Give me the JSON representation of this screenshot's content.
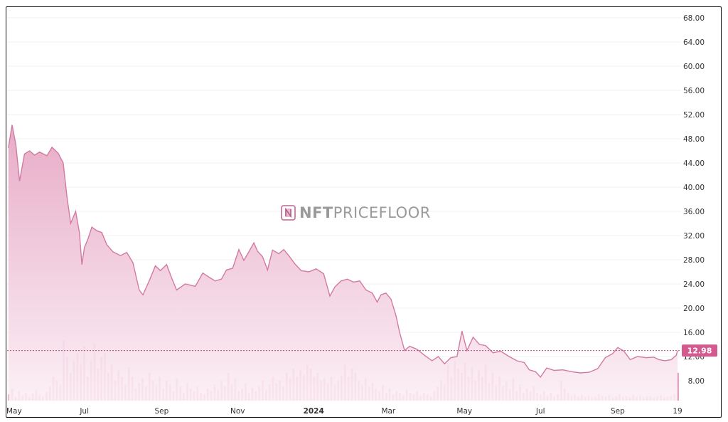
{
  "watermark": {
    "brand_bold": "NFT",
    "brand_light": "PRICEFLOOR",
    "icon": "nft-logo-icon"
  },
  "colors": {
    "line": "#d27aa2",
    "fill_top": "#e6a7c4",
    "fill_bottom": "#fbeef4",
    "volume": "#e37fae",
    "price_label_bg": "#d3598f"
  },
  "current_price": {
    "value": 12.98,
    "label": "12.98"
  },
  "chart_data": {
    "type": "area",
    "title": "",
    "xlabel": "",
    "ylabel": "",
    "ylim": [
      5,
      70
    ],
    "y_ticks": [
      8,
      12,
      16,
      20,
      24,
      28,
      32,
      36,
      40,
      44,
      48,
      52,
      56,
      60,
      64,
      68
    ],
    "y_tick_labels": [
      "8.00",
      "12.00",
      "16.00",
      "20.00",
      "24.00",
      "28.00",
      "32.00",
      "36.00",
      "40.00",
      "44.00",
      "48.00",
      "52.00",
      "56.00",
      "60.00",
      "64.00",
      "68.00"
    ],
    "x_ticks": [
      {
        "label": "May",
        "date": "2023-05-01"
      },
      {
        "label": "Jul",
        "date": "2023-07-01"
      },
      {
        "label": "Sep",
        "date": "2023-09-01"
      },
      {
        "label": "Nov",
        "date": "2023-11-01"
      },
      {
        "label": "2024",
        "date": "2024-01-01",
        "bold": true
      },
      {
        "label": "Mar",
        "date": "2024-03-01"
      },
      {
        "label": "May",
        "date": "2024-05-01"
      },
      {
        "label": "Jul",
        "date": "2024-07-01"
      },
      {
        "label": "Sep",
        "date": "2024-09-01"
      },
      {
        "label": "19",
        "date": "2024-10-19"
      }
    ],
    "grid": true,
    "price_series": {
      "name": "",
      "points": [
        [
          "2023-05-01",
          46.5
        ],
        [
          "2023-05-04",
          50.3
        ],
        [
          "2023-05-07",
          47.0
        ],
        [
          "2023-05-10",
          41.0
        ],
        [
          "2023-05-14",
          45.5
        ],
        [
          "2023-05-18",
          46.0
        ],
        [
          "2023-05-22",
          45.3
        ],
        [
          "2023-05-26",
          45.8
        ],
        [
          "2023-06-01",
          45.2
        ],
        [
          "2023-06-05",
          46.6
        ],
        [
          "2023-06-10",
          45.6
        ],
        [
          "2023-06-14",
          44.0
        ],
        [
          "2023-06-17",
          38.5
        ],
        [
          "2023-06-20",
          34.0
        ],
        [
          "2023-06-24",
          36.0
        ],
        [
          "2023-06-27",
          32.5
        ],
        [
          "2023-06-29",
          27.2
        ],
        [
          "2023-07-01",
          30.0
        ],
        [
          "2023-07-04",
          31.5
        ],
        [
          "2023-07-07",
          33.4
        ],
        [
          "2023-07-11",
          32.8
        ],
        [
          "2023-07-15",
          32.5
        ],
        [
          "2023-07-19",
          30.5
        ],
        [
          "2023-07-24",
          29.3
        ],
        [
          "2023-07-30",
          28.7
        ],
        [
          "2023-08-04",
          29.2
        ],
        [
          "2023-08-09",
          27.5
        ],
        [
          "2023-08-14",
          23.0
        ],
        [
          "2023-08-17",
          22.2
        ],
        [
          "2023-08-22",
          24.5
        ],
        [
          "2023-08-27",
          27.0
        ],
        [
          "2023-08-31",
          26.2
        ],
        [
          "2023-09-05",
          27.2
        ],
        [
          "2023-09-09",
          25.0
        ],
        [
          "2023-09-13",
          23.0
        ],
        [
          "2023-09-20",
          24.0
        ],
        [
          "2023-09-28",
          23.6
        ],
        [
          "2023-10-04",
          25.8
        ],
        [
          "2023-10-10",
          25.0
        ],
        [
          "2023-10-14",
          24.5
        ],
        [
          "2023-10-19",
          24.8
        ],
        [
          "2023-10-23",
          26.3
        ],
        [
          "2023-10-28",
          26.6
        ],
        [
          "2023-11-02",
          29.7
        ],
        [
          "2023-11-06",
          27.9
        ],
        [
          "2023-11-10",
          29.3
        ],
        [
          "2023-11-14",
          30.8
        ],
        [
          "2023-11-17",
          29.4
        ],
        [
          "2023-11-21",
          28.5
        ],
        [
          "2023-11-25",
          26.3
        ],
        [
          "2023-11-29",
          29.6
        ],
        [
          "2023-12-04",
          29.0
        ],
        [
          "2023-12-08",
          29.7
        ],
        [
          "2023-12-12",
          28.7
        ],
        [
          "2023-12-17",
          27.3
        ],
        [
          "2023-12-22",
          26.2
        ],
        [
          "2023-12-28",
          26.0
        ],
        [
          "2024-01-03",
          26.5
        ],
        [
          "2024-01-09",
          25.7
        ],
        [
          "2024-01-14",
          22.0
        ],
        [
          "2024-01-18",
          23.5
        ],
        [
          "2024-01-23",
          24.5
        ],
        [
          "2024-01-28",
          24.8
        ],
        [
          "2024-02-02",
          24.3
        ],
        [
          "2024-02-07",
          24.5
        ],
        [
          "2024-02-12",
          23.0
        ],
        [
          "2024-02-17",
          22.5
        ],
        [
          "2024-02-21",
          21.0
        ],
        [
          "2024-02-24",
          22.2
        ],
        [
          "2024-02-28",
          22.5
        ],
        [
          "2024-03-03",
          21.5
        ],
        [
          "2024-03-07",
          18.8
        ],
        [
          "2024-03-10",
          16.0
        ],
        [
          "2024-03-14",
          13.0
        ],
        [
          "2024-03-18",
          13.7
        ],
        [
          "2024-03-24",
          13.2
        ],
        [
          "2024-03-30",
          12.2
        ],
        [
          "2024-04-05",
          11.3
        ],
        [
          "2024-04-10",
          12.0
        ],
        [
          "2024-04-15",
          10.8
        ],
        [
          "2024-04-20",
          11.8
        ],
        [
          "2024-04-25",
          12.0
        ],
        [
          "2024-04-29",
          16.2
        ],
        [
          "2024-05-03",
          13.0
        ],
        [
          "2024-05-08",
          15.2
        ],
        [
          "2024-05-13",
          14.0
        ],
        [
          "2024-05-18",
          13.8
        ],
        [
          "2024-05-24",
          12.6
        ],
        [
          "2024-05-30",
          12.9
        ],
        [
          "2024-06-05",
          12.1
        ],
        [
          "2024-06-12",
          11.3
        ],
        [
          "2024-06-18",
          11.0
        ],
        [
          "2024-06-22",
          9.8
        ],
        [
          "2024-06-27",
          9.5
        ],
        [
          "2024-07-01",
          8.6
        ],
        [
          "2024-07-06",
          10.1
        ],
        [
          "2024-07-12",
          9.7
        ],
        [
          "2024-07-19",
          9.8
        ],
        [
          "2024-07-26",
          9.5
        ],
        [
          "2024-08-02",
          9.3
        ],
        [
          "2024-08-09",
          9.4
        ],
        [
          "2024-08-16",
          10.0
        ],
        [
          "2024-08-22",
          11.8
        ],
        [
          "2024-08-28",
          12.5
        ],
        [
          "2024-09-01",
          13.5
        ],
        [
          "2024-09-06",
          12.9
        ],
        [
          "2024-09-11",
          11.5
        ],
        [
          "2024-09-17",
          12.0
        ],
        [
          "2024-09-24",
          11.8
        ],
        [
          "2024-09-30",
          11.9
        ],
        [
          "2024-10-04",
          11.5
        ],
        [
          "2024-10-09",
          11.3
        ],
        [
          "2024-10-14",
          11.5
        ],
        [
          "2024-10-18",
          12.2
        ],
        [
          "2024-10-19",
          12.98
        ]
      ]
    },
    "volume_series": {
      "name": "",
      "relative_scale_max": 1.0,
      "bars": [
        0.08,
        0.15,
        0.05,
        0.12,
        0.06,
        0.1,
        0.04,
        0.09,
        0.13,
        0.07,
        0.05,
        0.11,
        0.18,
        0.3,
        0.25,
        0.2,
        0.75,
        0.55,
        0.35,
        0.5,
        0.6,
        0.45,
        0.68,
        0.3,
        0.5,
        0.72,
        0.4,
        0.55,
        0.6,
        0.35,
        0.45,
        0.25,
        0.38,
        0.3,
        0.2,
        0.42,
        0.3,
        0.15,
        0.22,
        0.28,
        0.18,
        0.35,
        0.25,
        0.2,
        0.3,
        0.15,
        0.25,
        0.2,
        0.12,
        0.28,
        0.18,
        0.1,
        0.22,
        0.15,
        0.12,
        0.18,
        0.1,
        0.08,
        0.15,
        0.12,
        0.2,
        0.14,
        0.25,
        0.18,
        0.35,
        0.2,
        0.28,
        0.12,
        0.15,
        0.22,
        0.1,
        0.16,
        0.12,
        0.18,
        0.25,
        0.14,
        0.2,
        0.3,
        0.22,
        0.25,
        0.18,
        0.35,
        0.28,
        0.4,
        0.3,
        0.38,
        0.32,
        0.45,
        0.4,
        0.3,
        0.35,
        0.25,
        0.28,
        0.22,
        0.3,
        0.2,
        0.25,
        0.32,
        0.45,
        0.3,
        0.4,
        0.35,
        0.25,
        0.2,
        0.28,
        0.18,
        0.22,
        0.15,
        0.12,
        0.2,
        0.1,
        0.15,
        0.08,
        0.12,
        0.1,
        0.07,
        0.14,
        0.1,
        0.08,
        0.12,
        0.06,
        0.1,
        0.08,
        0.05,
        0.12,
        0.18,
        0.25,
        0.2,
        0.45,
        0.3,
        0.5,
        0.4,
        0.35,
        0.48,
        0.3,
        0.42,
        0.25,
        0.38,
        0.3,
        0.45,
        0.22,
        0.35,
        0.2,
        0.3,
        0.18,
        0.25,
        0.15,
        0.28,
        0.12,
        0.2,
        0.1,
        0.15,
        0.12,
        0.18,
        0.1,
        0.08,
        0.12,
        0.06,
        0.1,
        0.05,
        0.08,
        0.25,
        0.15,
        0.1,
        0.06,
        0.08,
        0.05,
        0.07,
        0.05,
        0.06,
        0.04,
        0.05,
        0.08,
        0.06,
        0.05,
        0.07,
        0.04,
        0.06,
        0.08,
        0.05,
        0.06,
        0.04,
        0.07,
        0.05,
        0.06,
        0.04,
        0.05,
        0.06,
        0.04,
        0.05,
        0.07,
        0.04,
        0.05,
        0.06,
        0.08,
        0.35
      ]
    }
  }
}
